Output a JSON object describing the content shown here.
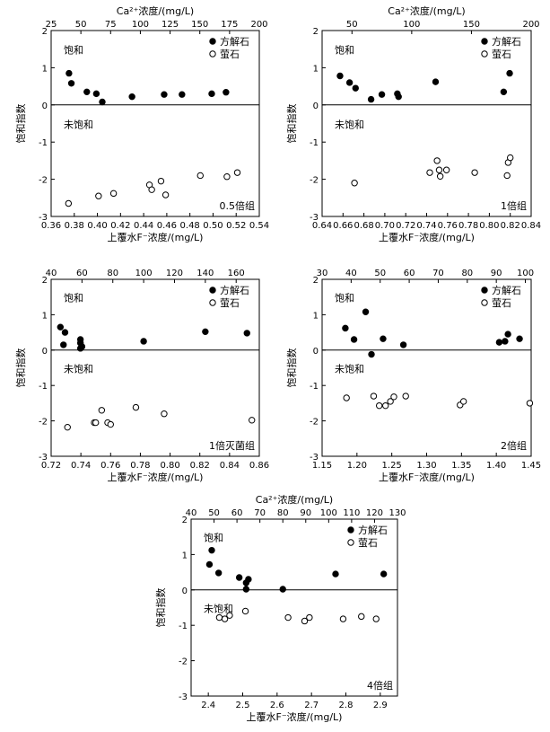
{
  "chart_data": [
    {
      "type": "scatter",
      "caption": "0.5倍组",
      "xlabel": "上覆水F⁻浓度/(mg/L)",
      "top_xlabel": "Ca²⁺浓度/(mg/L)",
      "ylabel": "饱和指数",
      "xlim": [
        0.36,
        0.54
      ],
      "xticks": [
        "0.36",
        "0.38",
        "0.40",
        "0.42",
        "0.44",
        "0.46",
        "0.48",
        "0.50",
        "0.52",
        "0.54"
      ],
      "top_xlim": [
        25,
        200
      ],
      "top_xticks": [
        "25",
        "50",
        "75",
        "100",
        "125",
        "150",
        "175",
        "200"
      ],
      "ylim": [
        -3,
        2
      ],
      "yticks": [
        "-3",
        "-2",
        "-1",
        "0",
        "1",
        "2"
      ],
      "region_labels": {
        "saturated": "饱和",
        "unsaturated": "未饱和"
      },
      "legend": [
        {
          "name": "方解石",
          "marker": "filled"
        },
        {
          "name": "萤石",
          "marker": "open"
        }
      ],
      "series": [
        {
          "name": "方解石",
          "marker": "filled",
          "x_axis": "top",
          "x": [
            40,
            42,
            55,
            63,
            68,
            93,
            120,
            135,
            160,
            172
          ],
          "y": [
            0.85,
            0.58,
            0.35,
            0.3,
            0.08,
            0.22,
            0.28,
            0.28,
            0.3,
            0.34
          ]
        },
        {
          "name": "萤石",
          "marker": "open",
          "x_axis": "bottom",
          "x": [
            0.375,
            0.401,
            0.414,
            0.445,
            0.447,
            0.455,
            0.459,
            0.489,
            0.512,
            0.521
          ],
          "y": [
            -2.65,
            -2.45,
            -2.38,
            -2.15,
            -2.28,
            -2.05,
            -2.42,
            -1.9,
            -1.93,
            -1.82
          ]
        }
      ]
    },
    {
      "type": "scatter",
      "caption": "1倍组",
      "xlabel": "上覆水F⁻浓度/(mg/L)",
      "top_xlabel": "Ca²⁺浓度/(mg/L)",
      "ylabel": "饱和指数",
      "xlim": [
        0.64,
        0.84
      ],
      "xticks": [
        "0.64",
        "0.66",
        "0.68",
        "0.70",
        "0.72",
        "0.74",
        "0.76",
        "0.78",
        "0.80",
        "0.82",
        "0.84"
      ],
      "top_xlim": [
        25,
        200
      ],
      "top_xticks": [
        "50",
        "100",
        "150",
        "200"
      ],
      "ylim": [
        -3,
        2
      ],
      "yticks": [
        "-3",
        "-2",
        "-1",
        "0",
        "1",
        "2"
      ],
      "region_labels": {
        "saturated": "饱和",
        "unsaturated": "未饱和"
      },
      "legend": [
        {
          "name": "方解石",
          "marker": "filled"
        },
        {
          "name": "萤石",
          "marker": "open"
        }
      ],
      "series": [
        {
          "name": "方解石",
          "marker": "filled",
          "x_axis": "top",
          "x": [
            40,
            48,
            53,
            66,
            75,
            88,
            89,
            120,
            177,
            182
          ],
          "y": [
            0.78,
            0.6,
            0.45,
            0.15,
            0.28,
            0.3,
            0.22,
            0.62,
            0.35,
            0.85
          ]
        },
        {
          "name": "萤石",
          "marker": "open",
          "x_axis": "bottom",
          "x": [
            0.671,
            0.743,
            0.75,
            0.752,
            0.753,
            0.759,
            0.786,
            0.817,
            0.818,
            0.82
          ],
          "y": [
            -2.1,
            -1.82,
            -1.5,
            -1.75,
            -1.92,
            -1.75,
            -1.82,
            -1.9,
            -1.55,
            -1.42
          ]
        }
      ]
    },
    {
      "type": "scatter",
      "caption": "1倍灭菌组",
      "xlabel": "上覆水F⁻浓度/(mg/L)",
      "top_xlabel": "",
      "ylabel": "饱和指数",
      "xlim": [
        0.72,
        0.86
      ],
      "xticks": [
        "0.72",
        "0.74",
        "0.76",
        "0.78",
        "0.80",
        "0.82",
        "0.84",
        "0.86"
      ],
      "top_xlim": [
        40,
        175
      ],
      "top_xticks": [
        "40",
        "60",
        "80",
        "100",
        "120",
        "140",
        "160"
      ],
      "ylim": [
        -3,
        2
      ],
      "yticks": [
        "-3",
        "-2",
        "-1",
        "0",
        "1",
        "2"
      ],
      "region_labels": {
        "saturated": "饱和",
        "unsaturated": "未饱和"
      },
      "legend": [
        {
          "name": "方解石",
          "marker": "filled"
        },
        {
          "name": "萤石",
          "marker": "open"
        }
      ],
      "series": [
        {
          "name": "方解石",
          "marker": "filled",
          "x_axis": "top",
          "x": [
            46,
            49,
            48,
            59,
            59,
            60,
            59,
            100,
            140,
            167
          ],
          "y": [
            0.65,
            0.5,
            0.15,
            0.3,
            0.2,
            0.1,
            0.05,
            0.25,
            0.52,
            0.48
          ]
        },
        {
          "name": "萤石",
          "marker": "open",
          "x_axis": "bottom",
          "x": [
            0.731,
            0.749,
            0.75,
            0.754,
            0.758,
            0.76,
            0.777,
            0.796,
            0.855
          ],
          "y": [
            -2.18,
            -2.05,
            -2.05,
            -1.7,
            -2.05,
            -2.1,
            -1.62,
            -1.8,
            -1.98
          ]
        }
      ]
    },
    {
      "type": "scatter",
      "caption": "2倍组",
      "xlabel": "上覆水F⁻浓度/(mg/L)",
      "top_xlabel": "",
      "ylabel": "饱和指数",
      "xlim": [
        1.15,
        1.45
      ],
      "xticks": [
        "1.15",
        "1.20",
        "1.25",
        "1.30",
        "1.35",
        "1.40",
        "1.45"
      ],
      "top_xlim": [
        30,
        102
      ],
      "top_xticks": [
        "30",
        "40",
        "50",
        "60",
        "70",
        "80",
        "90",
        "100"
      ],
      "ylim": [
        -3,
        2
      ],
      "yticks": [
        "-3",
        "-2",
        "-1",
        "0",
        "1",
        "2"
      ],
      "region_labels": {
        "saturated": "饱和",
        "unsaturated": "未饱和"
      },
      "legend": [
        {
          "name": "方解石",
          "marker": "filled"
        },
        {
          "name": "萤石",
          "marker": "open"
        }
      ],
      "series": [
        {
          "name": "方解石",
          "marker": "filled",
          "x_axis": "top",
          "x": [
            38,
            41,
            45,
            47,
            51,
            58,
            91,
            93,
            94,
            98
          ],
          "y": [
            0.62,
            0.3,
            1.08,
            -0.12,
            0.32,
            0.15,
            0.22,
            0.25,
            0.45,
            0.32
          ]
        },
        {
          "name": "萤石",
          "marker": "open",
          "x_axis": "bottom",
          "x": [
            1.185,
            1.224,
            1.232,
            1.241,
            1.248,
            1.253,
            1.27,
            1.348,
            1.353,
            1.448
          ],
          "y": [
            -1.35,
            -1.3,
            -1.57,
            -1.57,
            -1.45,
            -1.32,
            -1.3,
            -1.55,
            -1.45,
            -1.5
          ]
        }
      ]
    },
    {
      "type": "scatter",
      "caption": "4倍组",
      "xlabel": "上覆水F⁻浓度/(mg/L)",
      "top_xlabel": "Ca²⁺浓度/(mg/L)",
      "ylabel": "饱和指数",
      "xlim": [
        2.35,
        2.95
      ],
      "xticks": [
        "2.4",
        "2.5",
        "2.6",
        "2.7",
        "2.8",
        "2.9"
      ],
      "top_xlim": [
        40,
        130
      ],
      "top_xticks": [
        "40",
        "50",
        "60",
        "70",
        "80",
        "90",
        "100",
        "110",
        "120",
        "130"
      ],
      "ylim": [
        -3,
        2
      ],
      "yticks": [
        "-3",
        "-2",
        "-1",
        "0",
        "1",
        "2"
      ],
      "region_labels": {
        "saturated": "饱和",
        "unsaturated": "未饱和"
      },
      "legend": [
        {
          "name": "方解石",
          "marker": "filled"
        },
        {
          "name": "萤石",
          "marker": "open"
        }
      ],
      "series": [
        {
          "name": "方解石",
          "marker": "filled",
          "x_axis": "top",
          "x": [
            48,
            49,
            52,
            61,
            64,
            64,
            65,
            80,
            103,
            124
          ],
          "y": [
            0.72,
            1.12,
            0.48,
            0.35,
            0.2,
            0.02,
            0.3,
            0.02,
            0.45,
            0.45
          ]
        },
        {
          "name": "萤石",
          "marker": "open",
          "x_axis": "bottom",
          "x": [
            2.432,
            2.448,
            2.462,
            2.508,
            2.632,
            2.68,
            2.694,
            2.792,
            2.845,
            2.888
          ],
          "y": [
            -0.78,
            -0.82,
            -0.72,
            -0.6,
            -0.78,
            -0.88,
            -0.78,
            -0.82,
            -0.75,
            -0.82
          ]
        }
      ]
    }
  ]
}
